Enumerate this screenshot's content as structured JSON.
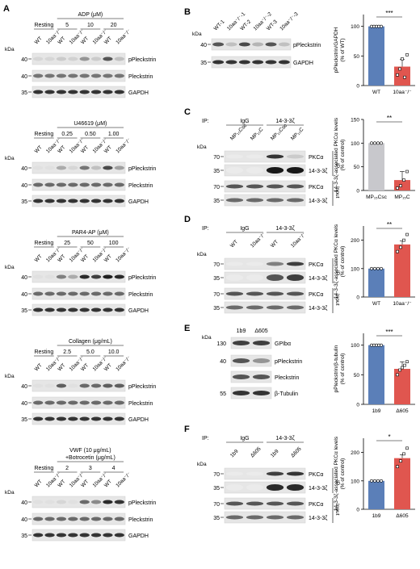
{
  "panels": {
    "A": {
      "letter": "A",
      "kda": "kDa",
      "labels": [
        "pPleckstrin",
        "Pleckstrin",
        "GAPDH"
      ],
      "sub": [
        {
          "cond": "ADP (μM)",
          "resting": "Resting",
          "doses": [
            "5",
            "10",
            "20"
          ],
          "wt": "WT",
          "ko": "10aa⁻/⁻",
          "mw": [
            "40",
            "40",
            "35"
          ]
        },
        {
          "cond": "U46619 (μM)",
          "resting": "Resting",
          "doses": [
            "0.25",
            "0.50",
            "1.00"
          ],
          "wt": "WT",
          "ko": "10aa⁻/⁻",
          "mw": [
            "40",
            "40",
            "35"
          ]
        },
        {
          "cond": "PAR4-AP (μM)",
          "resting": "Resting",
          "doses": [
            "25",
            "50",
            "100"
          ],
          "wt": "WT",
          "ko": "10aa⁻/⁻",
          "mw": [
            "40",
            "40",
            "35"
          ]
        },
        {
          "cond": "Collagen (μg/mL)",
          "resting": "Resting",
          "doses": [
            "2.5",
            "5.0",
            "10.0"
          ],
          "wt": "WT",
          "ko": "10aa⁻/⁻",
          "mw": [
            "40",
            "40",
            "35"
          ]
        },
        {
          "cond": "VWF (10 μg/mL)",
          "cond2": "+Botrocetin (μg/mL)",
          "resting": "Resting",
          "doses": [
            "2",
            "3",
            "4"
          ],
          "wt": "WT",
          "ko": "10aa⁻/⁻",
          "mw": [
            "40",
            "40",
            "35"
          ]
        }
      ]
    },
    "B": {
      "letter": "B",
      "kda": "kDa",
      "lanes": [
        "WT-1",
        "10aa⁻/⁻-1",
        "WT-2",
        "10aa⁻/⁻-2",
        "WT-3",
        "10aa⁻/⁻-3"
      ],
      "mw": [
        "40",
        "35"
      ],
      "labels": [
        "pPleckstrin",
        "GAPDH"
      ]
    },
    "C": {
      "letter": "C",
      "kda": "kDa",
      "ip": "IP:",
      "ip_groups": [
        "IgG",
        "14-3-3ζ"
      ],
      "lanes": [
        "MP₁₅Csc",
        "MP₁₅C",
        "MP₁₅Csc",
        "MP₁₅C"
      ],
      "mw": [
        "70",
        "35",
        "70",
        "35"
      ],
      "labels": [
        "PKCα",
        "14-3-3ζ",
        "PKCα",
        "14-3-3ζ"
      ],
      "side": [
        "IP",
        "Input"
      ]
    },
    "D": {
      "letter": "D",
      "kda": "kDa",
      "ip": "IP:",
      "ip_groups": [
        "IgG",
        "14-3-3ζ"
      ],
      "lanes": [
        "WT",
        "10aa⁻/⁻",
        "WT",
        "10aa⁻/⁻"
      ],
      "mw": [
        "70",
        "35",
        "70",
        "35"
      ],
      "labels": [
        "PKCα",
        "14-3-3ζ",
        "PKCα",
        "14-3-3ζ"
      ],
      "side": [
        "IP",
        "Input"
      ]
    },
    "E": {
      "letter": "E",
      "kda": "kDa",
      "lanes": [
        "1b9",
        "Δ605"
      ],
      "mw": [
        "130",
        "40",
        "55"
      ],
      "labels": [
        "GPIbα",
        "pPleckstrin",
        "Pleckstrin",
        "β-Tubulin"
      ]
    },
    "F": {
      "letter": "F",
      "kda": "kDa",
      "ip": "IP:",
      "ip_groups": [
        "IgG",
        "14-3-3ζ"
      ],
      "lanes": [
        "1b9",
        "Δ605",
        "1b9",
        "Δ605"
      ],
      "mw": [
        "70",
        "35",
        "70",
        "35"
      ],
      "labels": [
        "PKCα",
        "14-3-3ζ",
        "PKCα",
        "14-3-3ζ"
      ],
      "side": [
        "IP",
        "Input"
      ]
    }
  },
  "colors": {
    "blue": "#5b7fb8",
    "red": "#e0564f",
    "grey": "#c8c8cc"
  },
  "chart_data": [
    {
      "type": "bar",
      "panel": "B",
      "categories": [
        "WT",
        "10aa⁻/⁻"
      ],
      "values": [
        100,
        32
      ],
      "ylabel": "pPleckstrin/GAPDH (% of WT)",
      "ylim": [
        0,
        120
      ],
      "yticks": [
        "0",
        "50",
        "100"
      ],
      "significance": "***",
      "points": [
        [
          100,
          100,
          100,
          100,
          100
        ],
        [
          18,
          28,
          45,
          14,
          52
        ]
      ]
    },
    {
      "type": "bar",
      "panel": "C",
      "categories": [
        "MP₁₅Csc",
        "MP₁₅C"
      ],
      "values": [
        100,
        22
      ],
      "ylabel": "14-3-3ζ-associated PKCα levels (% of control)",
      "ylim": [
        0,
        150
      ],
      "yticks": [
        "0",
        "50",
        "100",
        "150"
      ],
      "significance": "**",
      "points": [
        [
          100,
          100,
          100,
          100
        ],
        [
          5,
          10,
          22,
          40
        ]
      ]
    },
    {
      "type": "bar",
      "panel": "D",
      "categories": [
        "WT",
        "10aa⁻/⁻"
      ],
      "values": [
        100,
        185
      ],
      "ylabel": "14-3-3ζ-associated PKCα levels (% of control)",
      "ylim": [
        0,
        250
      ],
      "yticks": [
        "0",
        "100",
        "200"
      ],
      "significance": "**",
      "points": [
        [
          100,
          100,
          100,
          100
        ],
        [
          160,
          175,
          200,
          220
        ]
      ]
    },
    {
      "type": "bar",
      "panel": "E",
      "categories": [
        "1b9",
        "Δ605"
      ],
      "values": [
        100,
        60
      ],
      "ylabel": "pPleckstrin/β-tubulin (% of control)",
      "ylim": [
        0,
        120
      ],
      "yticks": [
        "0",
        "50",
        "100"
      ],
      "significance": "***",
      "points": [
        [
          100,
          100,
          100,
          100,
          100
        ],
        [
          50,
          58,
          62,
          66,
          72
        ]
      ]
    },
    {
      "type": "bar",
      "panel": "F",
      "categories": [
        "1b9",
        "Δ605"
      ],
      "values": [
        100,
        180
      ],
      "ylabel": "14-3-3ζ-associated PKCα levels (% of control)",
      "ylim": [
        0,
        250
      ],
      "yticks": [
        "0",
        "100",
        "200"
      ],
      "significance": "*",
      "points": [
        [
          100,
          100,
          100,
          100
        ],
        [
          150,
          170,
          195,
          215
        ]
      ]
    }
  ]
}
